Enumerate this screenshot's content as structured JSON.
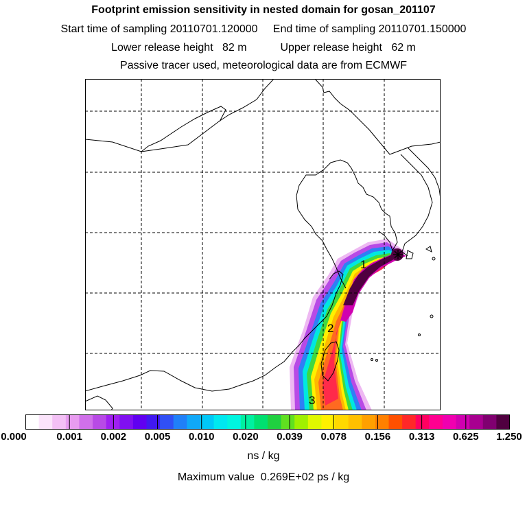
{
  "header": {
    "title": "Footprint emission sensitivity in nested domain for gosan_201107",
    "line1": "Start time of sampling 20110701.120000     End time of sampling 20110701.150000",
    "line2": "Lower release height   82 m           Upper release height   62 m",
    "line3": "Passive tracer used, meteorological data are from ECMWF"
  },
  "map": {
    "markers": [
      {
        "label": "1"
      },
      {
        "label": "2"
      },
      {
        "label": "3"
      }
    ],
    "receptor_symbol": "star-marker"
  },
  "colorbar": {
    "tick_labels": [
      "0.000",
      "0.001",
      "0.002",
      "0.005",
      "0.010",
      "0.020",
      "0.039",
      "0.078",
      "0.156",
      "0.313",
      "0.625",
      "1.250"
    ],
    "colors": [
      "#ffffff",
      "#fbe4fb",
      "#f3c0f5",
      "#e89cf0",
      "#d070ea",
      "#b84ae6",
      "#a020f0",
      "#8010f0",
      "#6000f0",
      "#4018f0",
      "#3050f5",
      "#2080f8",
      "#10a8f8",
      "#00c8f8",
      "#00e8f0",
      "#00f5e0",
      "#00f0a0",
      "#00e070",
      "#20d040",
      "#60e020",
      "#a0f000",
      "#e0f800",
      "#fff000",
      "#ffd800",
      "#ffc000",
      "#ffa000",
      "#ff8000",
      "#ff5000",
      "#ff2828",
      "#ff0060",
      "#ff0090",
      "#f000b0",
      "#d000b0",
      "#a80090",
      "#800070",
      "#500040"
    ],
    "unit": "ns / kg"
  },
  "footer": {
    "max_value": "Maximum value  0.269E+02 ps / kg"
  }
}
